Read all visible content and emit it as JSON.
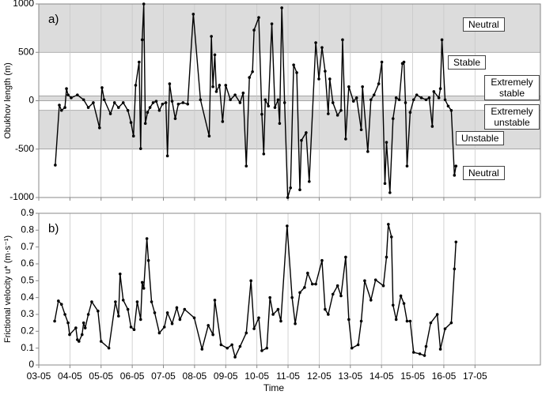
{
  "chart_data": [
    {
      "type": "line",
      "panel_label": "a)",
      "ylabel": "Obukhov length (m)",
      "color": "#000000",
      "xlim": [
        3,
        19.1
      ],
      "ylim": [
        -1000,
        1000
      ],
      "yticks": [
        -1000,
        -500,
        0,
        500,
        1000
      ],
      "xticks": [
        {
          "value": 3,
          "label": "03-05"
        },
        {
          "value": 4,
          "label": "04-05"
        },
        {
          "value": 5,
          "label": "05-05"
        },
        {
          "value": 6,
          "label": "06-05"
        },
        {
          "value": 7,
          "label": "07-05"
        },
        {
          "value": 8,
          "label": "08-05"
        },
        {
          "value": 9,
          "label": "09-05"
        },
        {
          "value": 10,
          "label": "10-05"
        },
        {
          "value": 11,
          "label": "11-05"
        },
        {
          "value": 12,
          "label": "12-05"
        },
        {
          "value": 13,
          "label": "13-05"
        },
        {
          "value": 14,
          "label": "14-05"
        },
        {
          "value": 15,
          "label": "15-05"
        },
        {
          "value": 16,
          "label": "16-05"
        },
        {
          "value": 17,
          "label": "17-05"
        }
      ],
      "grid": true,
      "regions": [
        {
          "label": "Neutral",
          "range": [
            500,
            1000
          ],
          "shaded": true
        },
        {
          "label": "Stable",
          "range": [
            50,
            500
          ],
          "shaded": false
        },
        {
          "label": "Extremely stable",
          "range": [
            0,
            50
          ],
          "shaded": true
        },
        {
          "label": "Extremely unstable",
          "range": [
            -100,
            0
          ],
          "shaded": false
        },
        {
          "label": "Unstable",
          "range": [
            -500,
            -100
          ],
          "shaded": true
        },
        {
          "label": "Neutral",
          "range": [
            -1000,
            -500
          ],
          "shaded": false
        }
      ],
      "x": [
        3.53,
        3.66,
        3.73,
        3.84,
        3.89,
        3.94,
        4.04,
        4.24,
        4.44,
        4.59,
        4.75,
        4.95,
        5.03,
        5.1,
        5.3,
        5.43,
        5.56,
        5.71,
        5.86,
        5.96,
        6.04,
        6.11,
        6.22,
        6.27,
        6.32,
        6.37,
        6.42,
        6.49,
        6.57,
        6.67,
        6.77,
        6.87,
        6.97,
        7.08,
        7.13,
        7.2,
        7.28,
        7.38,
        7.48,
        7.63,
        7.78,
        7.96,
        8.19,
        8.47,
        8.54,
        8.59,
        8.65,
        8.7,
        8.8,
        8.9,
        9.0,
        9.15,
        9.3,
        9.46,
        9.56,
        9.66,
        9.76,
        9.86,
        9.91,
        10.06,
        10.16,
        10.22,
        10.27,
        10.37,
        10.48,
        10.58,
        10.68,
        10.73,
        10.8,
        10.89,
        10.99,
        11.08,
        11.18,
        11.28,
        11.38,
        11.43,
        11.58,
        11.68,
        11.89,
        11.99,
        12.09,
        12.19,
        12.29,
        12.34,
        12.44,
        12.59,
        12.7,
        12.75,
        12.85,
        12.95,
        13.1,
        13.2,
        13.35,
        13.39,
        13.56,
        13.66,
        13.76,
        13.91,
        14.01,
        14.11,
        14.16,
        14.27,
        14.37,
        14.47,
        14.57,
        14.67,
        14.72,
        14.77,
        14.82,
        14.92,
        15.03,
        15.13,
        15.28,
        15.43,
        15.53,
        15.63,
        15.68,
        15.84,
        15.89,
        15.94,
        16.04,
        16.14,
        16.24,
        16.34,
        16.39
      ],
      "values": [
        -665,
        -45,
        -100,
        -70,
        125,
        60,
        30,
        60,
        10,
        -70,
        -20,
        -280,
        135,
        10,
        -135,
        -20,
        -70,
        -20,
        -100,
        -225,
        -365,
        160,
        400,
        -495,
        630,
        1000,
        -235,
        -120,
        -70,
        -20,
        -5,
        -100,
        -35,
        -20,
        -570,
        175,
        -5,
        -185,
        -35,
        -20,
        -35,
        895,
        10,
        -365,
        665,
        145,
        475,
        95,
        160,
        -215,
        160,
        10,
        60,
        -20,
        80,
        -675,
        240,
        300,
        730,
        860,
        -140,
        -550,
        10,
        -55,
        795,
        -70,
        10,
        -235,
        960,
        -20,
        -1000,
        -900,
        370,
        290,
        -920,
        -410,
        -330,
        -835,
        600,
        225,
        550,
        305,
        -135,
        225,
        -20,
        -150,
        -100,
        630,
        -395,
        145,
        -5,
        30,
        -300,
        145,
        -525,
        10,
        60,
        175,
        400,
        -855,
        -430,
        -950,
        -185,
        30,
        10,
        385,
        400,
        -20,
        -675,
        -120,
        10,
        60,
        30,
        10,
        30,
        -265,
        95,
        30,
        125,
        630,
        10,
        -55,
        -100,
        -770,
        -675
      ]
    },
    {
      "type": "line",
      "panel_label": "b)",
      "ylabel": "Frictional velocity u* (m·s⁻¹)",
      "xlabel": "Time",
      "color": "#000000",
      "xlim": [
        3,
        19.1
      ],
      "ylim": [
        0,
        0.9
      ],
      "yticks": [
        0,
        0.1,
        0.2,
        0.3,
        0.4,
        0.5,
        0.6,
        0.7,
        0.8,
        0.9
      ],
      "xticks": [
        {
          "value": 3,
          "label": "03-05"
        },
        {
          "value": 4,
          "label": "04-05"
        },
        {
          "value": 5,
          "label": "05-05"
        },
        {
          "value": 6,
          "label": "06-05"
        },
        {
          "value": 7,
          "label": "07-05"
        },
        {
          "value": 8,
          "label": "08-05"
        },
        {
          "value": 9,
          "label": "09-05"
        },
        {
          "value": 10,
          "label": "10-05"
        },
        {
          "value": 11,
          "label": "11-05"
        },
        {
          "value": 12,
          "label": "12-05"
        },
        {
          "value": 13,
          "label": "13-05"
        },
        {
          "value": 14,
          "label": "14-05"
        },
        {
          "value": 15,
          "label": "15-05"
        },
        {
          "value": 16,
          "label": "16-05"
        },
        {
          "value": 17,
          "label": "17-05"
        }
      ],
      "grid": true,
      "x": [
        3.51,
        3.63,
        3.73,
        3.84,
        3.94,
        3.99,
        4.19,
        4.24,
        4.29,
        4.39,
        4.44,
        4.49,
        4.59,
        4.7,
        4.9,
        5.0,
        5.25,
        5.46,
        5.56,
        5.61,
        5.71,
        5.86,
        5.96,
        6.06,
        6.16,
        6.27,
        6.32,
        6.37,
        6.47,
        6.52,
        6.62,
        6.72,
        6.87,
        7.03,
        7.13,
        7.28,
        7.43,
        7.53,
        7.68,
        7.99,
        8.24,
        8.44,
        8.59,
        8.65,
        8.85,
        9.05,
        9.2,
        9.3,
        9.46,
        9.66,
        9.81,
        9.91,
        10.06,
        10.16,
        10.32,
        10.42,
        10.52,
        10.68,
        10.77,
        10.97,
        11.13,
        11.23,
        11.38,
        11.53,
        11.63,
        11.78,
        11.89,
        12.09,
        12.19,
        12.29,
        12.44,
        12.59,
        12.7,
        12.85,
        12.95,
        13.05,
        13.25,
        13.35,
        13.46,
        13.66,
        13.81,
        14.06,
        14.16,
        14.22,
        14.32,
        14.37,
        14.47,
        14.62,
        14.72,
        14.82,
        14.92,
        15.03,
        15.23,
        15.38,
        15.43,
        15.58,
        15.79,
        15.89,
        16.04,
        16.24,
        16.34,
        16.39
      ],
      "values": [
        0.26,
        0.38,
        0.36,
        0.3,
        0.25,
        0.18,
        0.22,
        0.15,
        0.14,
        0.18,
        0.25,
        0.22,
        0.3,
        0.375,
        0.32,
        0.14,
        0.1,
        0.375,
        0.29,
        0.54,
        0.385,
        0.33,
        0.225,
        0.21,
        0.375,
        0.27,
        0.49,
        0.455,
        0.75,
        0.62,
        0.375,
        0.31,
        0.19,
        0.225,
        0.31,
        0.245,
        0.34,
        0.27,
        0.33,
        0.28,
        0.094,
        0.235,
        0.18,
        0.385,
        0.12,
        0.1,
        0.12,
        0.047,
        0.11,
        0.19,
        0.5,
        0.215,
        0.28,
        0.085,
        0.1,
        0.4,
        0.3,
        0.33,
        0.26,
        0.825,
        0.4,
        0.245,
        0.43,
        0.46,
        0.545,
        0.48,
        0.48,
        0.62,
        0.33,
        0.3,
        0.42,
        0.47,
        0.41,
        0.64,
        0.27,
        0.1,
        0.12,
        0.26,
        0.5,
        0.385,
        0.505,
        0.47,
        0.64,
        0.835,
        0.76,
        0.355,
        0.27,
        0.41,
        0.365,
        0.26,
        0.26,
        0.075,
        0.066,
        0.056,
        0.11,
        0.25,
        0.3,
        0.094,
        0.215,
        0.25,
        0.57,
        0.73
      ]
    }
  ]
}
